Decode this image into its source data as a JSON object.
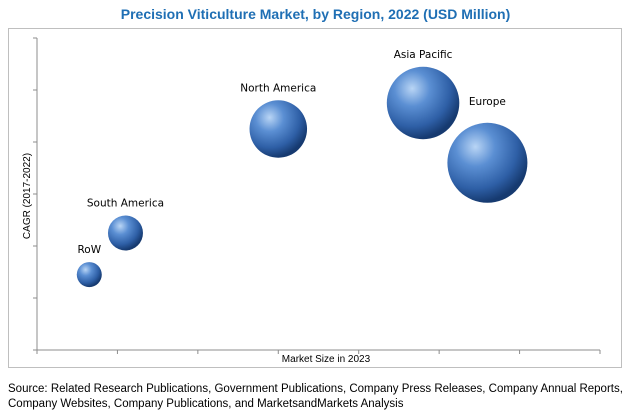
{
  "chart_data": {
    "type": "scatter",
    "title": "Precision Viticulture Market, by Region, 2022 (USD Million)",
    "xlabel": "Market Size in 2023",
    "ylabel": "CAGR (2017-2022)",
    "xlim": [
      0,
      7
    ],
    "ylim": [
      0,
      6
    ],
    "grid": false,
    "series": [
      {
        "points": [
          {
            "label": "RoW",
            "x": 0.65,
            "y": 1.45,
            "size": 1.0
          },
          {
            "label": "South America",
            "x": 1.1,
            "y": 2.25,
            "size": 1.4
          },
          {
            "label": "North America",
            "x": 3.0,
            "y": 4.25,
            "size": 2.3
          },
          {
            "label": "Asia Pacific",
            "x": 4.8,
            "y": 4.75,
            "size": 2.9
          },
          {
            "label": "Europe",
            "x": 5.6,
            "y": 3.6,
            "size": 3.2
          }
        ]
      }
    ],
    "colors": {
      "bubble_light": "#8ab4e8",
      "bubble_mid": "#3a6fb8",
      "bubble_dark": "#16396e",
      "title": "#1f6fb4"
    }
  },
  "source": "Source: Related Research Publications, Government Publications, Company Press Releases, Company Annual Reports, Company Websites, Company Publications, and MarketsandMarkets Analysis"
}
